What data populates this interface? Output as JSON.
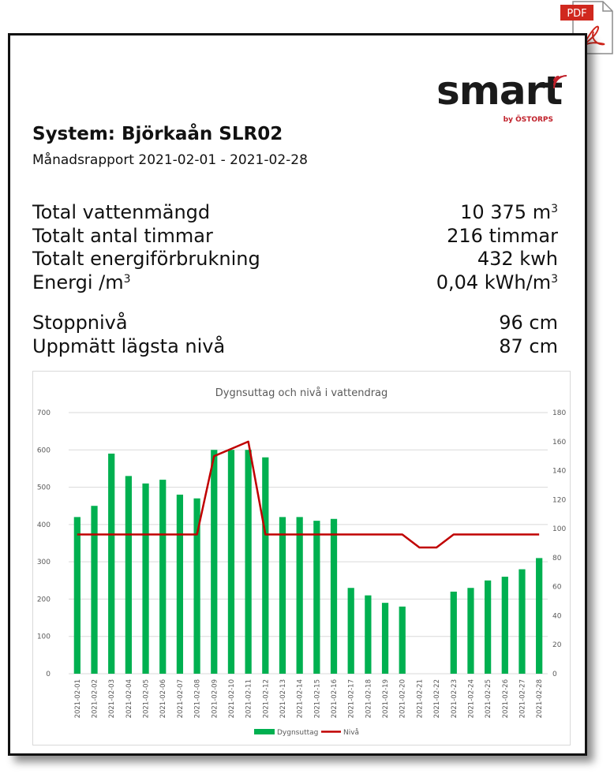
{
  "pdf_badge": "PDF",
  "logo": {
    "main": "smart",
    "sub": "by ÖSTORPS"
  },
  "report": {
    "title": "System: Björkaån SLR02",
    "subtitle": "Månadsrapport 2021-02-01 - 2021-02-28"
  },
  "stats": [
    {
      "label": "Total vattenmängd",
      "value": "10 375 m",
      "sup": "3"
    },
    {
      "label": "Totalt antal timmar",
      "value": "216 timmar",
      "sup": ""
    },
    {
      "label": "Totalt energiförbrukning",
      "value": "432 kwh",
      "sup": ""
    },
    {
      "label": "Energi /m",
      "label_sup": "3",
      "value": "0,04 kWh/m",
      "sup": "3"
    },
    {
      "label": "Stoppnivå",
      "value": "96 cm",
      "sup": ""
    },
    {
      "label": "Uppmätt lägsta nivå",
      "value": "87 cm",
      "sup": ""
    }
  ],
  "colors": {
    "bar": "#00b050",
    "line": "#c00000",
    "grid": "#d9d9d9",
    "axis_text": "#595959"
  },
  "chart_data": {
    "type": "bar",
    "title": "Dygnsuttag och nivå i vattendrag",
    "categories": [
      "2021-02-01",
      "2021-02-02",
      "2021-02-03",
      "2021-02-04",
      "2021-02-05",
      "2021-02-06",
      "2021-02-07",
      "2021-02-08",
      "2021-02-09",
      "2021-02-10",
      "2021-02-11",
      "2021-02-12",
      "2021-02-13",
      "2021-02-14",
      "2021-02-15",
      "2021-02-16",
      "2021-02-17",
      "2021-02-18",
      "2021-02-19",
      "2021-02-20",
      "2021-02-21",
      "2021-02-22",
      "2021-02-23",
      "2021-02-24",
      "2021-02-25",
      "2021-02-26",
      "2021-02-27",
      "2021-02-28"
    ],
    "series": [
      {
        "name": "Dygnsuttag",
        "type": "bar",
        "axis": "left",
        "values": [
          420,
          450,
          590,
          530,
          510,
          520,
          480,
          470,
          600,
          600,
          600,
          580,
          420,
          420,
          410,
          415,
          230,
          210,
          190,
          180,
          0,
          0,
          220,
          230,
          250,
          260,
          280,
          310
        ]
      },
      {
        "name": "Nivå",
        "type": "line",
        "axis": "right",
        "values": [
          96,
          96,
          96,
          96,
          96,
          96,
          96,
          96,
          150,
          155,
          160,
          96,
          96,
          96,
          96,
          96,
          96,
          96,
          96,
          96,
          87,
          87,
          96,
          96,
          96,
          96,
          96,
          96
        ]
      }
    ],
    "y_left": {
      "min": 0,
      "max": 700,
      "ticks": [
        "0",
        "100",
        "200",
        "300",
        "400",
        "500",
        "600",
        "700"
      ]
    },
    "y_right": {
      "min": 0,
      "max": 180,
      "ticks": [
        "0",
        "20",
        "40",
        "60",
        "80",
        "100",
        "120",
        "140",
        "160",
        "180"
      ]
    },
    "grid": true,
    "legend": "bottom"
  }
}
